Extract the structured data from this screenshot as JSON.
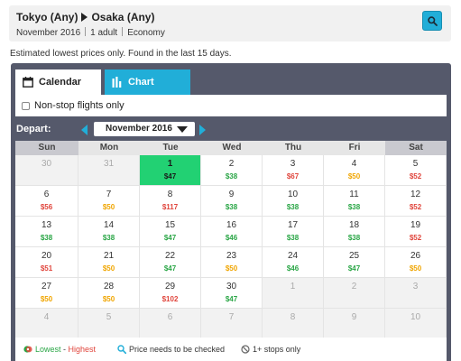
{
  "search": {
    "origin": "Tokyo (Any)",
    "destination": "Osaka (Any)",
    "month": "November 2016",
    "passengers": "1 adult",
    "cabin": "Economy"
  },
  "notice": "Estimated lowest prices only. Found in the last 15 days.",
  "tabs": {
    "calendar": "Calendar",
    "chart": "Chart"
  },
  "filter": {
    "nonstop_label": "Non-stop flights only",
    "nonstop_checked": false
  },
  "depart": {
    "label": "Depart:",
    "month_value": "November 2016"
  },
  "calendar": {
    "weekdays": [
      "Sun",
      "Mon",
      "Tue",
      "Wed",
      "Thu",
      "Fri",
      "Sat"
    ],
    "weeks": [
      [
        {
          "d": "30",
          "o": true
        },
        {
          "d": "31",
          "o": true
        },
        {
          "d": "1",
          "p": "$47",
          "c": "green",
          "sel": true
        },
        {
          "d": "2",
          "p": "$38",
          "c": "green"
        },
        {
          "d": "3",
          "p": "$67",
          "c": "red"
        },
        {
          "d": "4",
          "p": "$50",
          "c": "orange"
        },
        {
          "d": "5",
          "p": "$52",
          "c": "red"
        }
      ],
      [
        {
          "d": "6",
          "p": "$56",
          "c": "red"
        },
        {
          "d": "7",
          "p": "$50",
          "c": "orange"
        },
        {
          "d": "8",
          "p": "$117",
          "c": "red"
        },
        {
          "d": "9",
          "p": "$38",
          "c": "green"
        },
        {
          "d": "10",
          "p": "$38",
          "c": "green"
        },
        {
          "d": "11",
          "p": "$38",
          "c": "green"
        },
        {
          "d": "12",
          "p": "$52",
          "c": "red"
        }
      ],
      [
        {
          "d": "13",
          "p": "$38",
          "c": "green"
        },
        {
          "d": "14",
          "p": "$38",
          "c": "green"
        },
        {
          "d": "15",
          "p": "$47",
          "c": "green"
        },
        {
          "d": "16",
          "p": "$46",
          "c": "green"
        },
        {
          "d": "17",
          "p": "$38",
          "c": "green"
        },
        {
          "d": "18",
          "p": "$38",
          "c": "green"
        },
        {
          "d": "19",
          "p": "$52",
          "c": "red"
        }
      ],
      [
        {
          "d": "20",
          "p": "$51",
          "c": "red"
        },
        {
          "d": "21",
          "p": "$50",
          "c": "orange"
        },
        {
          "d": "22",
          "p": "$47",
          "c": "green"
        },
        {
          "d": "23",
          "p": "$50",
          "c": "orange"
        },
        {
          "d": "24",
          "p": "$46",
          "c": "green"
        },
        {
          "d": "25",
          "p": "$47",
          "c": "green"
        },
        {
          "d": "26",
          "p": "$50",
          "c": "orange"
        }
      ],
      [
        {
          "d": "27",
          "p": "$50",
          "c": "orange"
        },
        {
          "d": "28",
          "p": "$50",
          "c": "orange"
        },
        {
          "d": "29",
          "p": "$102",
          "c": "red"
        },
        {
          "d": "30",
          "p": "$47",
          "c": "green"
        },
        {
          "d": "1",
          "o": true
        },
        {
          "d": "2",
          "o": true
        },
        {
          "d": "3",
          "o": true
        }
      ],
      [
        {
          "d": "4",
          "o": true
        },
        {
          "d": "5",
          "o": true
        },
        {
          "d": "6",
          "o": true
        },
        {
          "d": "7",
          "o": true
        },
        {
          "d": "8",
          "o": true
        },
        {
          "d": "9",
          "o": true
        },
        {
          "d": "10",
          "o": true
        }
      ]
    ]
  },
  "legend": {
    "lowest": "Lowest",
    "dash": " - ",
    "highest": "Highest",
    "check": "Price needs to be checked",
    "stops": "1+ stops only"
  },
  "colors": {
    "accent": "#21aed8",
    "panel": "#55596b",
    "selected": "#22d173",
    "low": "#2aa646",
    "mid": "#f0a500",
    "high": "#e0453c"
  },
  "icons": {
    "search": "search-icon",
    "calendar": "calendar-icon",
    "chart": "bar-chart-icon"
  }
}
